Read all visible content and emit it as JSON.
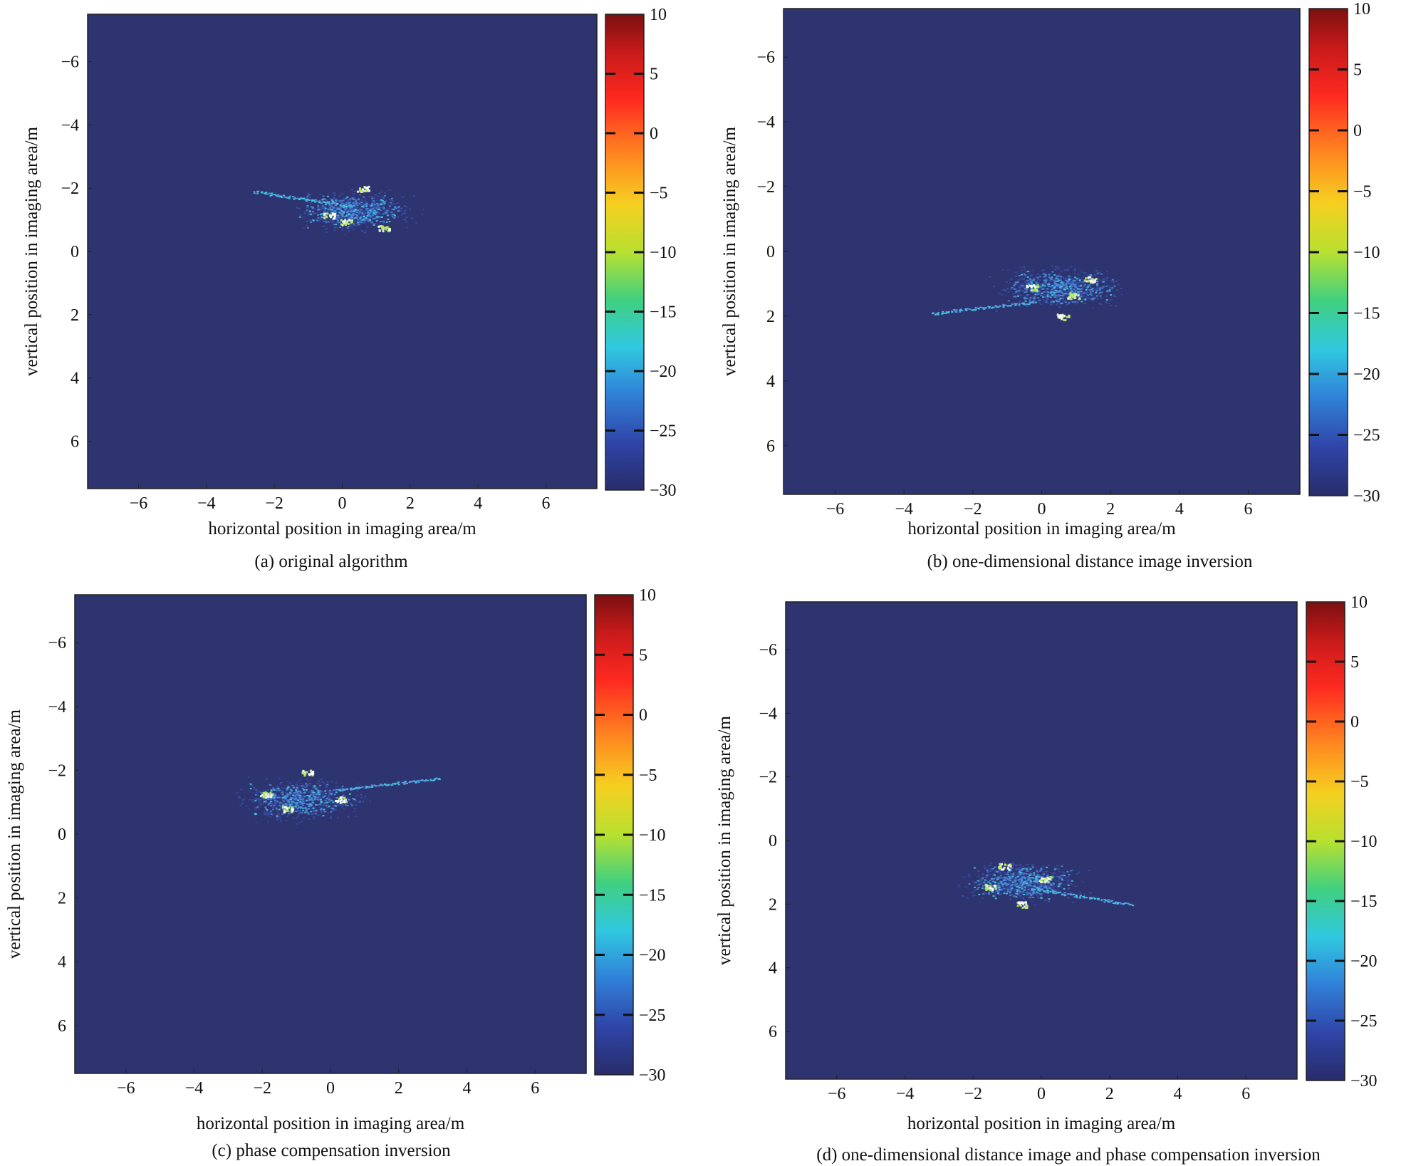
{
  "colors": {
    "background_field": "#2e3470",
    "scatter_low": "#3a55b0",
    "scatter_mid": "#3fd0e0",
    "scatter_high": "#b8f060"
  },
  "chart_data": [
    {
      "type": "heatmap",
      "caption": "(a) original algorithm",
      "xlabel": "horizontal position in imaging area/m",
      "ylabel": "vertical position in imaging area/m",
      "xlim": [
        -7.5,
        7.5
      ],
      "ylim": [
        -7.5,
        7.5
      ],
      "y_axis_inverted": true,
      "x_ticks": [
        "−6",
        "−4",
        "−2",
        "0",
        "2",
        "4",
        "6"
      ],
      "y_ticks": [
        "−6",
        "−4",
        "−2",
        "0",
        "2",
        "4",
        "6"
      ],
      "colorbar": {
        "range": [
          -30,
          10
        ],
        "ticks": [
          "10",
          "5",
          "0",
          "−5",
          "−10",
          "−15",
          "−20",
          "−25",
          "−30"
        ]
      },
      "target": {
        "center": [
          0.3,
          -1.3
        ],
        "spread": [
          1.6,
          0.55
        ],
        "streak": [
          [
            -2.6,
            -1.9
          ],
          [
            0.2,
            -1.45
          ]
        ],
        "hotspots": [
          [
            0.6,
            -2.0
          ],
          [
            -0.4,
            -1.15
          ],
          [
            1.2,
            -0.75
          ],
          [
            0.1,
            -0.95
          ]
        ]
      }
    },
    {
      "type": "heatmap",
      "caption": "(b) one-dimensional distance image inversion",
      "xlabel": "horizontal position in imaging area/m",
      "ylabel": "vertical position in imaging area/m",
      "xlim": [
        -7.5,
        7.5
      ],
      "ylim": [
        -7.5,
        7.5
      ],
      "y_axis_inverted": true,
      "x_ticks": [
        "−6",
        "−4",
        "−2",
        "0",
        "2",
        "4",
        "6"
      ],
      "y_ticks": [
        "−6",
        "−4",
        "−2",
        "0",
        "2",
        "4",
        "6"
      ],
      "colorbar": {
        "range": [
          -30,
          10
        ],
        "ticks": [
          "10",
          "5",
          "0",
          "−5",
          "−10",
          "−15",
          "−20",
          "−25",
          "−30"
        ]
      },
      "target": {
        "center": [
          0.5,
          1.1
        ],
        "spread": [
          1.6,
          0.55
        ],
        "streak": [
          [
            -3.2,
            1.9
          ],
          [
            -0.2,
            1.55
          ]
        ],
        "hotspots": [
          [
            0.6,
            2.0
          ],
          [
            -0.3,
            1.1
          ],
          [
            1.4,
            0.85
          ],
          [
            0.9,
            1.35
          ]
        ]
      }
    },
    {
      "type": "heatmap",
      "caption": "(c) phase compensation inversion",
      "xlabel": "horizontal position in imaging area/m",
      "ylabel": "vertical position in imaging area/m",
      "xlim": [
        -7.5,
        7.5
      ],
      "ylim": [
        -7.5,
        7.5
      ],
      "y_axis_inverted": true,
      "x_ticks": [
        "−6",
        "−4",
        "−2",
        "0",
        "2",
        "4",
        "6"
      ],
      "y_ticks": [
        "−6",
        "−4",
        "−2",
        "0",
        "2",
        "4",
        "6"
      ],
      "colorbar": {
        "range": [
          -30,
          10
        ],
        "ticks": [
          "10",
          "5",
          "0",
          "−5",
          "−10",
          "−15",
          "−20",
          "−25",
          "−30"
        ]
      },
      "target": {
        "center": [
          -0.9,
          -1.1
        ],
        "spread": [
          1.6,
          0.55
        ],
        "streak": [
          [
            0.2,
            -1.4
          ],
          [
            3.2,
            -1.75
          ]
        ],
        "hotspots": [
          [
            -0.7,
            -1.95
          ],
          [
            -1.3,
            -0.8
          ],
          [
            0.3,
            -1.1
          ],
          [
            -1.9,
            -1.25
          ]
        ]
      }
    },
    {
      "type": "heatmap",
      "caption": "(d) one-dimensional distance image and phase compensation inversion",
      "xlabel": "horizontal position in imaging area/m",
      "ylabel": "vertical position in imaging area/m",
      "xlim": [
        -7.5,
        7.5
      ],
      "ylim": [
        -7.5,
        7.5
      ],
      "y_axis_inverted": true,
      "x_ticks": [
        "−6",
        "−4",
        "−2",
        "0",
        "2",
        "4",
        "6"
      ],
      "y_ticks": [
        "−6",
        "−4",
        "−2",
        "0",
        "2",
        "4",
        "6"
      ],
      "colorbar": {
        "range": [
          -30,
          10
        ],
        "ticks": [
          "10",
          "5",
          "0",
          "−5",
          "−10",
          "−15",
          "−20",
          "−25",
          "−30"
        ]
      },
      "target": {
        "center": [
          -0.6,
          1.3
        ],
        "spread": [
          1.6,
          0.55
        ],
        "streak": [
          [
            -0.3,
            1.5
          ],
          [
            2.6,
            2.0
          ]
        ],
        "hotspots": [
          [
            -0.6,
            2.0
          ],
          [
            -1.1,
            0.8
          ],
          [
            0.1,
            1.2
          ],
          [
            -1.5,
            1.45
          ]
        ]
      }
    }
  ]
}
